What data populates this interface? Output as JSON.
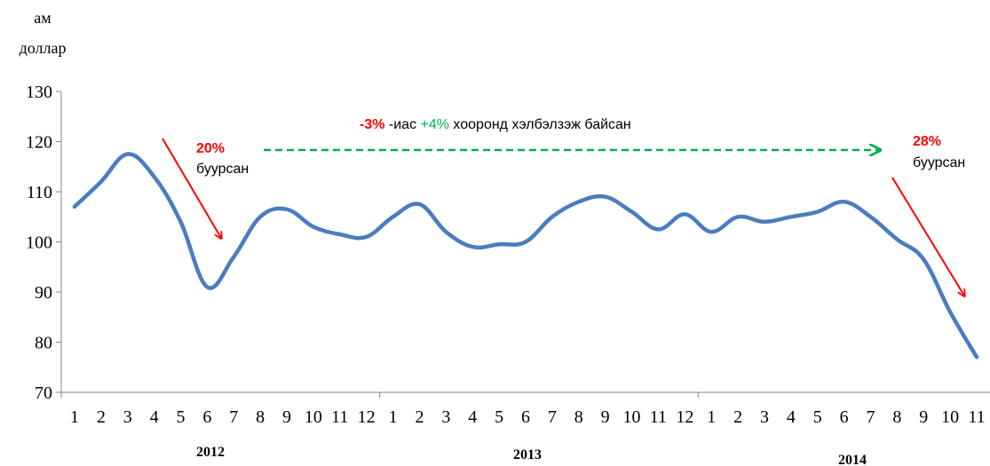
{
  "chart_data": {
    "type": "line",
    "ylabel_line1": "ам",
    "ylabel_line2": "доллар",
    "ylim": [
      70,
      130
    ],
    "yticks": [
      "70",
      "80",
      "90",
      "100",
      "110",
      "120",
      "130"
    ],
    "x_month_labels": [
      "1",
      "2",
      "3",
      "4",
      "5",
      "6",
      "7",
      "8",
      "9",
      "10",
      "11",
      "12",
      "1",
      "2",
      "3",
      "4",
      "5",
      "6",
      "7",
      "8",
      "9",
      "10",
      "11",
      "12",
      "1",
      "2",
      "3",
      "4",
      "5",
      "6",
      "7",
      "8",
      "9",
      "10",
      "11"
    ],
    "years": [
      "2012",
      "2013",
      "2014"
    ],
    "series": [
      {
        "values": [
          107,
          112,
          117.5,
          113,
          104,
          91,
          97,
          105,
          106.5,
          103,
          101.5,
          101,
          105,
          107.5,
          102,
          99,
          99.5,
          100,
          105,
          108,
          109,
          106,
          102.5,
          105.5,
          102,
          105,
          104,
          105,
          106,
          108,
          105,
          100.5,
          96.5,
          86,
          77
        ]
      }
    ],
    "grid": false,
    "annotations": {
      "drop1_pct": "20%",
      "drop1_text": "буурсан",
      "range_neg": "-3%",
      "range_mid": " -иас ",
      "range_pos": "+4%",
      "range_text": " хооронд хэлбэлзэж байсан",
      "drop2_pct": "28%",
      "drop2_text": "буурсан"
    }
  },
  "colors": {
    "line": "#4a7dbf",
    "axis": "#868686",
    "text": "#000000",
    "red": "#ff0000",
    "green": "#00b050"
  }
}
